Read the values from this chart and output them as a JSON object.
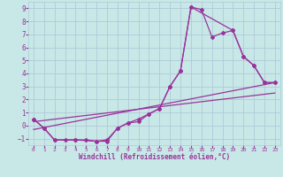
{
  "xlabel": "Windchill (Refroidissement éolien,°C)",
  "xlim": [
    -0.5,
    23.5
  ],
  "ylim": [
    -1.5,
    9.5
  ],
  "yticks": [
    -1,
    0,
    1,
    2,
    3,
    4,
    5,
    6,
    7,
    8,
    9
  ],
  "xticks": [
    0,
    1,
    2,
    3,
    4,
    5,
    6,
    7,
    8,
    9,
    10,
    11,
    12,
    13,
    14,
    15,
    16,
    17,
    18,
    19,
    20,
    21,
    22,
    23
  ],
  "background_color": "#c8e8e8",
  "grid_color": "#b0c8d8",
  "line_color": "#993399",
  "line1_x": [
    0,
    1,
    2,
    3,
    4,
    5,
    6,
    7,
    8,
    9,
    10,
    11,
    12,
    13,
    14,
    15,
    16,
    17,
    18,
    19,
    20,
    21,
    22,
    23
  ],
  "line1_y": [
    0.5,
    -0.2,
    -1.1,
    -1.1,
    -1.1,
    -1.1,
    -1.2,
    -1.1,
    -0.2,
    0.2,
    0.3,
    0.9,
    1.3,
    3.0,
    4.2,
    9.1,
    8.9,
    6.8,
    7.1,
    7.3,
    5.3,
    4.6,
    3.3,
    3.3
  ],
  "line2_x": [
    0,
    1,
    2,
    4,
    6,
    7,
    8,
    9,
    10,
    11,
    12,
    13,
    14,
    15,
    19,
    20,
    21,
    22,
    23
  ],
  "line2_y": [
    0.5,
    -0.2,
    -1.1,
    -1.1,
    -1.2,
    -1.2,
    -0.2,
    0.2,
    0.5,
    0.9,
    1.3,
    3.0,
    4.2,
    9.1,
    7.3,
    5.3,
    4.6,
    3.3,
    3.3
  ],
  "line3_x": [
    0,
    23
  ],
  "line3_y": [
    -0.3,
    3.3
  ],
  "line4_x": [
    0,
    23
  ],
  "line4_y": [
    0.3,
    2.5
  ]
}
